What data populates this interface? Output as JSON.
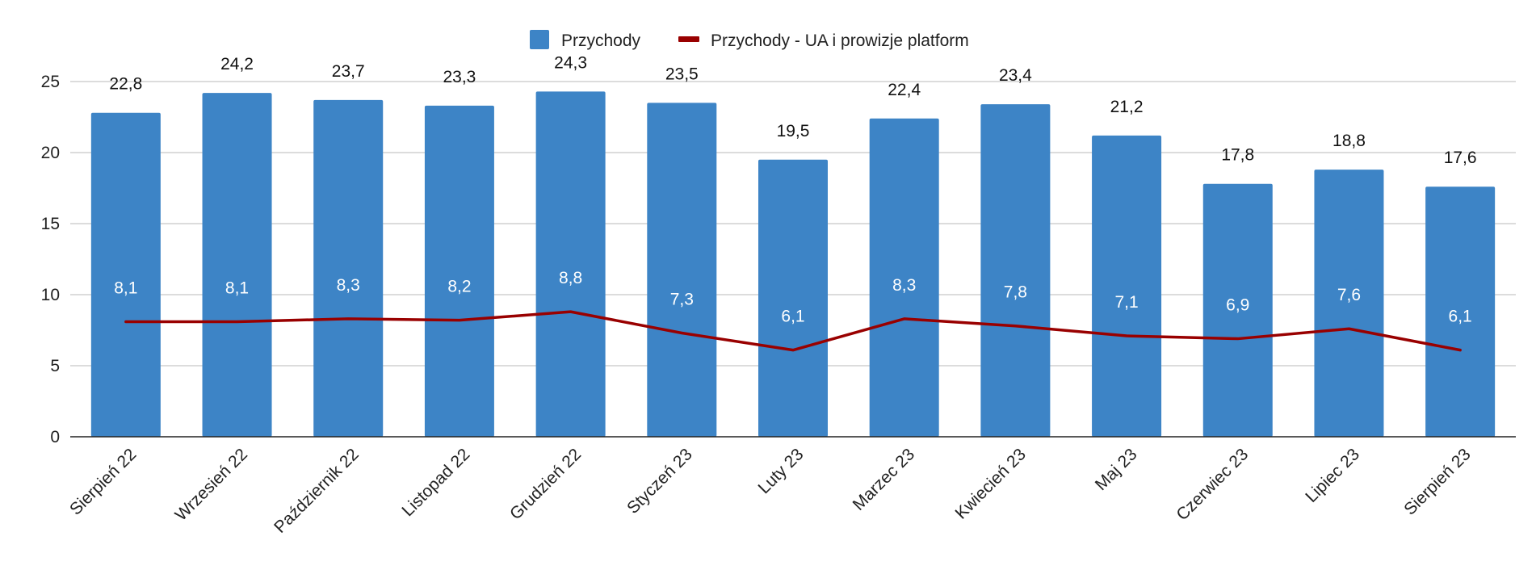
{
  "chart_data": {
    "type": "bar",
    "title": "",
    "xlabel": "",
    "ylabel": "",
    "categories": [
      "Sierpień 22",
      "Wrzesień 22",
      "Październik 22",
      "Listopad 22",
      "Grudzień 22",
      "Styczeń 23",
      "Luty 23",
      "Marzec 23",
      "Kwiecień 23",
      "Maj 23",
      "Czerwiec 23",
      "Lipiec 23",
      "Sierpień 23"
    ],
    "ylim": [
      0,
      25
    ],
    "yticks": [
      0,
      5,
      10,
      15,
      20,
      25
    ],
    "grid": true,
    "legend_position": "top-center",
    "series": [
      {
        "name": "Przychody",
        "type": "bar",
        "color": "#3d84c6",
        "values": [
          22.8,
          24.2,
          23.7,
          23.3,
          24.3,
          23.5,
          19.5,
          22.4,
          23.4,
          21.2,
          17.8,
          18.8,
          17.6
        ],
        "labels": [
          "22,8",
          "24,2",
          "23,7",
          "23,3",
          "24,3",
          "23,5",
          "19,5",
          "22,4",
          "23,4",
          "21,2",
          "17,8",
          "18,8",
          "17,6"
        ]
      },
      {
        "name": "Przychody - UA i prowizje platform",
        "type": "line",
        "color": "#990000",
        "values": [
          8.1,
          8.1,
          8.3,
          8.2,
          8.8,
          7.3,
          6.1,
          8.3,
          7.8,
          7.1,
          6.9,
          7.6,
          6.1
        ],
        "labels": [
          "8,1",
          "8,1",
          "8,3",
          "8,2",
          "8,8",
          "7,3",
          "6,1",
          "8,3",
          "7,8",
          "7,1",
          "6,9",
          "7,6",
          "6,1"
        ]
      }
    ]
  }
}
